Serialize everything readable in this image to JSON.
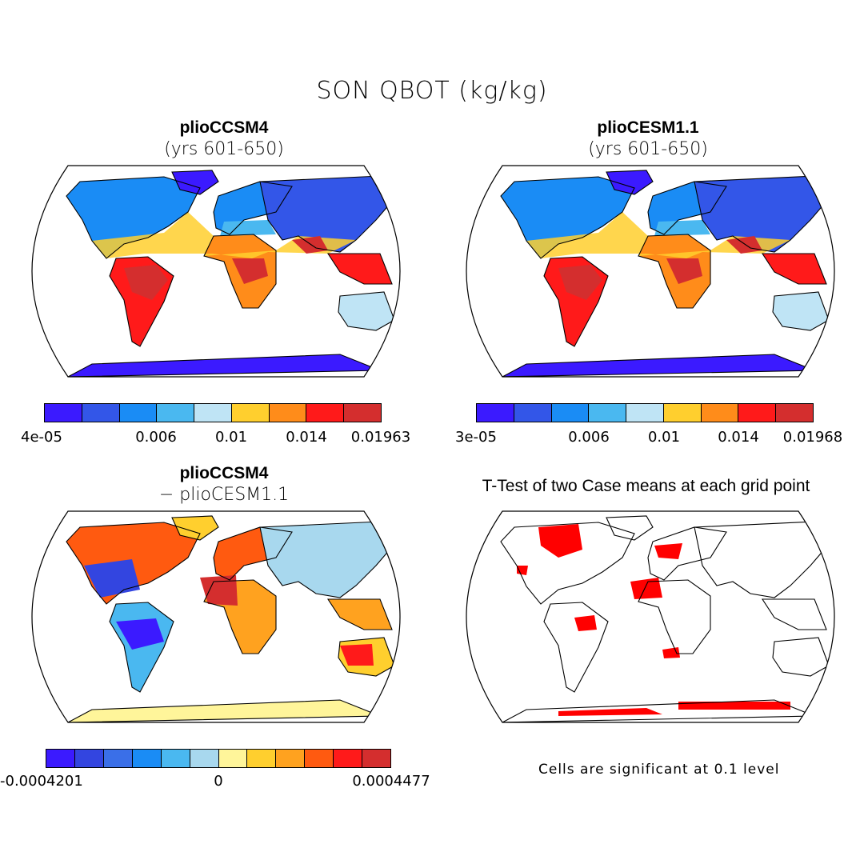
{
  "figure": {
    "title": "SON QBOT (kg/kg)"
  },
  "panels": [
    {
      "id": "plioCCSM4",
      "title": "plioCCSM4",
      "subtitle": "(yrs 601-650)",
      "type": "filled-contour-map",
      "colorbar": {
        "colors": [
          "#3b1aff",
          "#3356e8",
          "#1a8cf5",
          "#4ab8f0",
          "#bfe4f5",
          "#ffcf2e",
          "#ff8c1a",
          "#ff1a1a",
          "#d42e2e"
        ],
        "labels": [
          "4e-05",
          "0.006",
          "0.01",
          "0.014",
          "0.01963"
        ]
      }
    },
    {
      "id": "plioCESM1.1",
      "title": "plioCESM1.1",
      "subtitle": "(yrs 601-650)",
      "type": "filled-contour-map",
      "colorbar": {
        "colors": [
          "#3b1aff",
          "#3356e8",
          "#1a8cf5",
          "#4ab8f0",
          "#bfe4f5",
          "#ffcf2e",
          "#ff8c1a",
          "#ff1a1a",
          "#d42e2e"
        ],
        "labels": [
          "3e-05",
          "0.006",
          "0.01",
          "0.014",
          "0.01968"
        ]
      }
    },
    {
      "id": "difference",
      "title": "plioCCSM4",
      "subtitle": "− plioCESM1.1",
      "type": "difference-map",
      "colorbar": {
        "colors": [
          "#3b1aff",
          "#3345e0",
          "#3a6fe8",
          "#1a8cf5",
          "#4ab8f0",
          "#a8d8ee",
          "#fff59a",
          "#ffcf2e",
          "#ffa21f",
          "#ff5a10",
          "#ff1a1a",
          "#d42e2e"
        ],
        "labels": [
          "-0.0004201",
          "0",
          "0.0004477"
        ]
      }
    },
    {
      "id": "ttest",
      "title": "T-Test of two Case means at each grid point",
      "type": "significance-map",
      "significant_color": "#ff0000",
      "note": "Cells are significant at 0.1 level"
    }
  ]
}
